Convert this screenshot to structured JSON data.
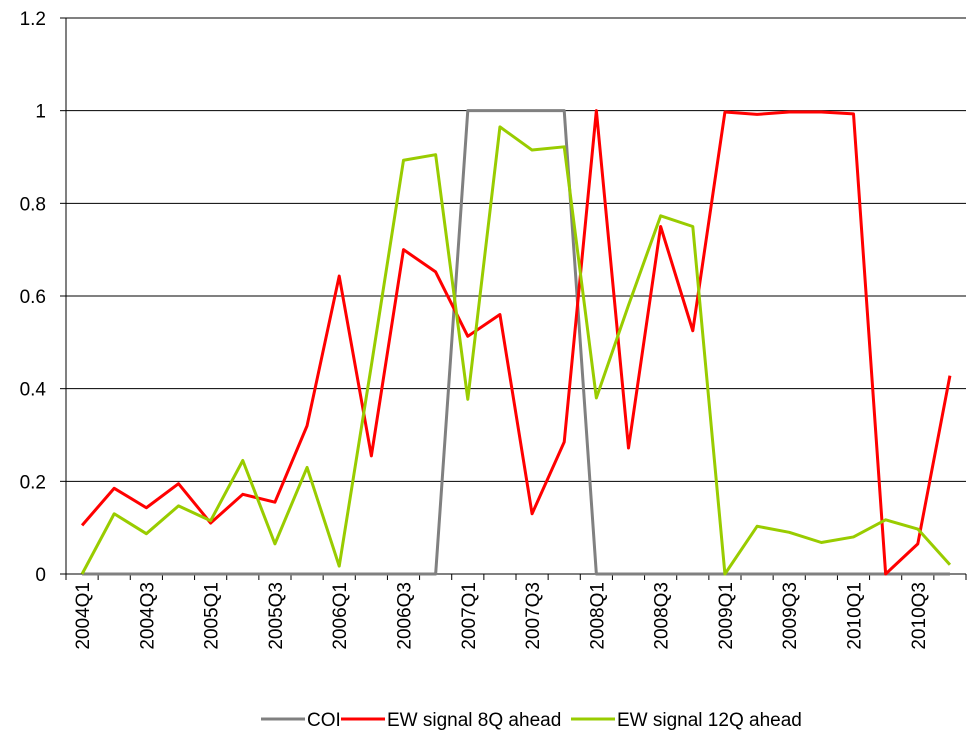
{
  "chart_data": {
    "type": "line",
    "categories": [
      "2004Q1",
      null,
      "2004Q3",
      null,
      "2005Q1",
      null,
      "2005Q3",
      null,
      "2006Q1",
      null,
      "2006Q3",
      null,
      "2007Q1",
      null,
      "2007Q3",
      null,
      "2008Q1",
      null,
      "2008Q3",
      null,
      "2009Q1",
      null,
      "2009Q3",
      null,
      "2010Q1",
      null,
      "2010Q3",
      null
    ],
    "series": [
      {
        "name": "COI",
        "color": "#808080",
        "values": [
          0,
          0,
          0,
          0,
          0,
          0,
          0,
          0,
          0,
          0,
          0,
          0,
          1,
          1,
          1,
          1,
          0,
          0,
          0,
          0,
          0,
          0,
          0,
          0,
          0,
          0,
          0,
          0
        ]
      },
      {
        "name": "EW signal 8Q ahead",
        "color": "#ff0000",
        "values": [
          0.105,
          0.185,
          0.143,
          0.195,
          0.11,
          0.172,
          0.155,
          0.32,
          0.643,
          0.255,
          0.7,
          0.652,
          0.513,
          0.56,
          0.13,
          0.285,
          1.0,
          0.272,
          0.75,
          0.525,
          0.997,
          0.992,
          0.997,
          0.997,
          0.993,
          0.0,
          0.065,
          0.428
        ]
      },
      {
        "name": "EW signal 12Q ahead",
        "color": "#99cc00",
        "values": [
          0.0,
          0.13,
          0.087,
          0.147,
          0.115,
          0.245,
          0.065,
          0.23,
          0.017,
          0.45,
          0.893,
          0.905,
          0.377,
          0.965,
          0.915,
          0.922,
          0.38,
          0.58,
          0.773,
          0.75,
          0.0,
          0.103,
          0.09,
          0.068,
          0.08,
          0.117,
          0.097,
          0.02
        ]
      }
    ],
    "ylim": [
      0,
      1.2
    ],
    "yticks": [
      0,
      0.2,
      0.4,
      0.6,
      0.8,
      1,
      1.2
    ],
    "grid": true,
    "legend": "bottom"
  }
}
